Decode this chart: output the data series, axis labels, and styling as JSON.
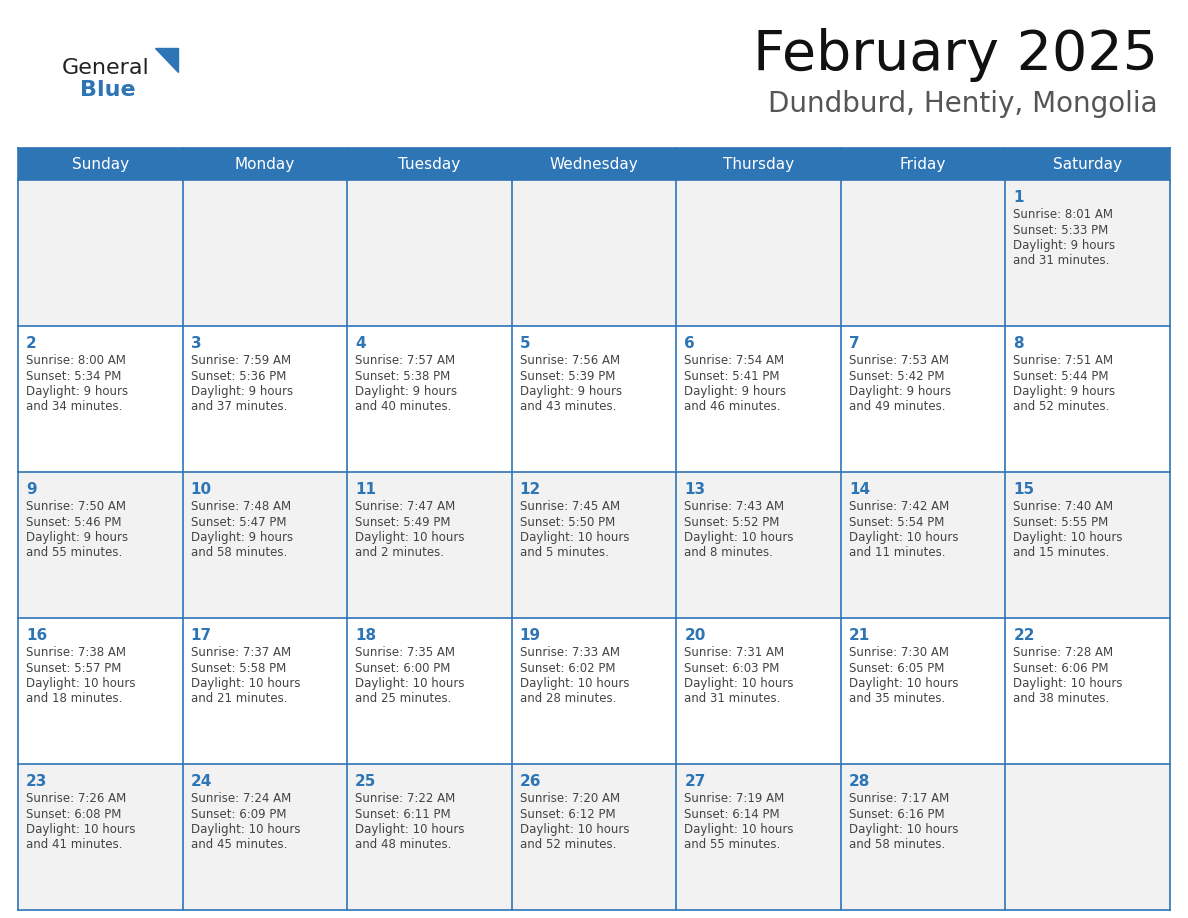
{
  "title": "February 2025",
  "subtitle": "Dundburd, Hentiy, Mongolia",
  "days_of_week": [
    "Sunday",
    "Monday",
    "Tuesday",
    "Wednesday",
    "Thursday",
    "Friday",
    "Saturday"
  ],
  "header_bg_color": "#2e75b6",
  "header_text_color": "#ffffff",
  "cell_bg_even": "#ffffff",
  "cell_bg_odd": "#f2f2f2",
  "cell_border_color": "#2e75b6",
  "day_number_color": "#2e75b6",
  "cell_text_color": "#444444",
  "title_color": "#111111",
  "subtitle_color": "#555555",
  "logo_general_color": "#222222",
  "logo_blue_color": "#2e75b6",
  "logo_triangle_color": "#2e75b6",
  "calendar_data": [
    [
      null,
      null,
      null,
      null,
      null,
      null,
      1
    ],
    [
      2,
      3,
      4,
      5,
      6,
      7,
      8
    ],
    [
      9,
      10,
      11,
      12,
      13,
      14,
      15
    ],
    [
      16,
      17,
      18,
      19,
      20,
      21,
      22
    ],
    [
      23,
      24,
      25,
      26,
      27,
      28,
      null
    ]
  ],
  "cell_info": {
    "1": {
      "sunrise": "8:01 AM",
      "sunset": "5:33 PM",
      "daylight_line1": "Daylight: 9 hours",
      "daylight_line2": "and 31 minutes."
    },
    "2": {
      "sunrise": "8:00 AM",
      "sunset": "5:34 PM",
      "daylight_line1": "Daylight: 9 hours",
      "daylight_line2": "and 34 minutes."
    },
    "3": {
      "sunrise": "7:59 AM",
      "sunset": "5:36 PM",
      "daylight_line1": "Daylight: 9 hours",
      "daylight_line2": "and 37 minutes."
    },
    "4": {
      "sunrise": "7:57 AM",
      "sunset": "5:38 PM",
      "daylight_line1": "Daylight: 9 hours",
      "daylight_line2": "and 40 minutes."
    },
    "5": {
      "sunrise": "7:56 AM",
      "sunset": "5:39 PM",
      "daylight_line1": "Daylight: 9 hours",
      "daylight_line2": "and 43 minutes."
    },
    "6": {
      "sunrise": "7:54 AM",
      "sunset": "5:41 PM",
      "daylight_line1": "Daylight: 9 hours",
      "daylight_line2": "and 46 minutes."
    },
    "7": {
      "sunrise": "7:53 AM",
      "sunset": "5:42 PM",
      "daylight_line1": "Daylight: 9 hours",
      "daylight_line2": "and 49 minutes."
    },
    "8": {
      "sunrise": "7:51 AM",
      "sunset": "5:44 PM",
      "daylight_line1": "Daylight: 9 hours",
      "daylight_line2": "and 52 minutes."
    },
    "9": {
      "sunrise": "7:50 AM",
      "sunset": "5:46 PM",
      "daylight_line1": "Daylight: 9 hours",
      "daylight_line2": "and 55 minutes."
    },
    "10": {
      "sunrise": "7:48 AM",
      "sunset": "5:47 PM",
      "daylight_line1": "Daylight: 9 hours",
      "daylight_line2": "and 58 minutes."
    },
    "11": {
      "sunrise": "7:47 AM",
      "sunset": "5:49 PM",
      "daylight_line1": "Daylight: 10 hours",
      "daylight_line2": "and 2 minutes."
    },
    "12": {
      "sunrise": "7:45 AM",
      "sunset": "5:50 PM",
      "daylight_line1": "Daylight: 10 hours",
      "daylight_line2": "and 5 minutes."
    },
    "13": {
      "sunrise": "7:43 AM",
      "sunset": "5:52 PM",
      "daylight_line1": "Daylight: 10 hours",
      "daylight_line2": "and 8 minutes."
    },
    "14": {
      "sunrise": "7:42 AM",
      "sunset": "5:54 PM",
      "daylight_line1": "Daylight: 10 hours",
      "daylight_line2": "and 11 minutes."
    },
    "15": {
      "sunrise": "7:40 AM",
      "sunset": "5:55 PM",
      "daylight_line1": "Daylight: 10 hours",
      "daylight_line2": "and 15 minutes."
    },
    "16": {
      "sunrise": "7:38 AM",
      "sunset": "5:57 PM",
      "daylight_line1": "Daylight: 10 hours",
      "daylight_line2": "and 18 minutes."
    },
    "17": {
      "sunrise": "7:37 AM",
      "sunset": "5:58 PM",
      "daylight_line1": "Daylight: 10 hours",
      "daylight_line2": "and 21 minutes."
    },
    "18": {
      "sunrise": "7:35 AM",
      "sunset": "6:00 PM",
      "daylight_line1": "Daylight: 10 hours",
      "daylight_line2": "and 25 minutes."
    },
    "19": {
      "sunrise": "7:33 AM",
      "sunset": "6:02 PM",
      "daylight_line1": "Daylight: 10 hours",
      "daylight_line2": "and 28 minutes."
    },
    "20": {
      "sunrise": "7:31 AM",
      "sunset": "6:03 PM",
      "daylight_line1": "Daylight: 10 hours",
      "daylight_line2": "and 31 minutes."
    },
    "21": {
      "sunrise": "7:30 AM",
      "sunset": "6:05 PM",
      "daylight_line1": "Daylight: 10 hours",
      "daylight_line2": "and 35 minutes."
    },
    "22": {
      "sunrise": "7:28 AM",
      "sunset": "6:06 PM",
      "daylight_line1": "Daylight: 10 hours",
      "daylight_line2": "and 38 minutes."
    },
    "23": {
      "sunrise": "7:26 AM",
      "sunset": "6:08 PM",
      "daylight_line1": "Daylight: 10 hours",
      "daylight_line2": "and 41 minutes."
    },
    "24": {
      "sunrise": "7:24 AM",
      "sunset": "6:09 PM",
      "daylight_line1": "Daylight: 10 hours",
      "daylight_line2": "and 45 minutes."
    },
    "25": {
      "sunrise": "7:22 AM",
      "sunset": "6:11 PM",
      "daylight_line1": "Daylight: 10 hours",
      "daylight_line2": "and 48 minutes."
    },
    "26": {
      "sunrise": "7:20 AM",
      "sunset": "6:12 PM",
      "daylight_line1": "Daylight: 10 hours",
      "daylight_line2": "and 52 minutes."
    },
    "27": {
      "sunrise": "7:19 AM",
      "sunset": "6:14 PM",
      "daylight_line1": "Daylight: 10 hours",
      "daylight_line2": "and 55 minutes."
    },
    "28": {
      "sunrise": "7:17 AM",
      "sunset": "6:16 PM",
      "daylight_line1": "Daylight: 10 hours",
      "daylight_line2": "and 58 minutes."
    }
  }
}
